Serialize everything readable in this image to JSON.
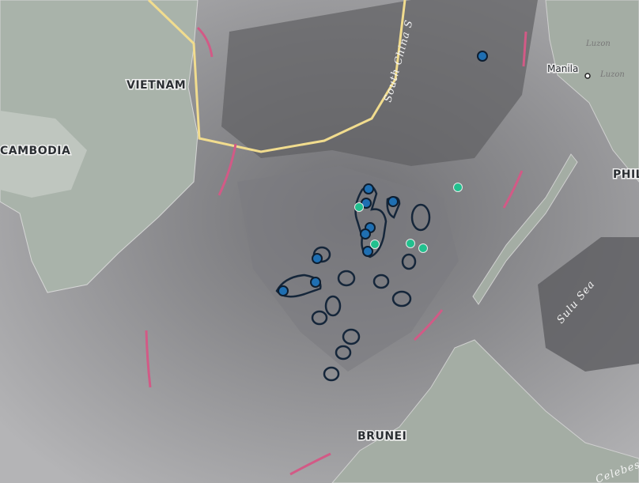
{
  "labels": [
    "VIETNAM",
    "CAMBODIA",
    "BRUNEI",
    "PHIL",
    "Manila",
    "Luzon",
    "Luzon",
    "South China S",
    "Sulu Sea",
    "Celebes"
  ]
}
